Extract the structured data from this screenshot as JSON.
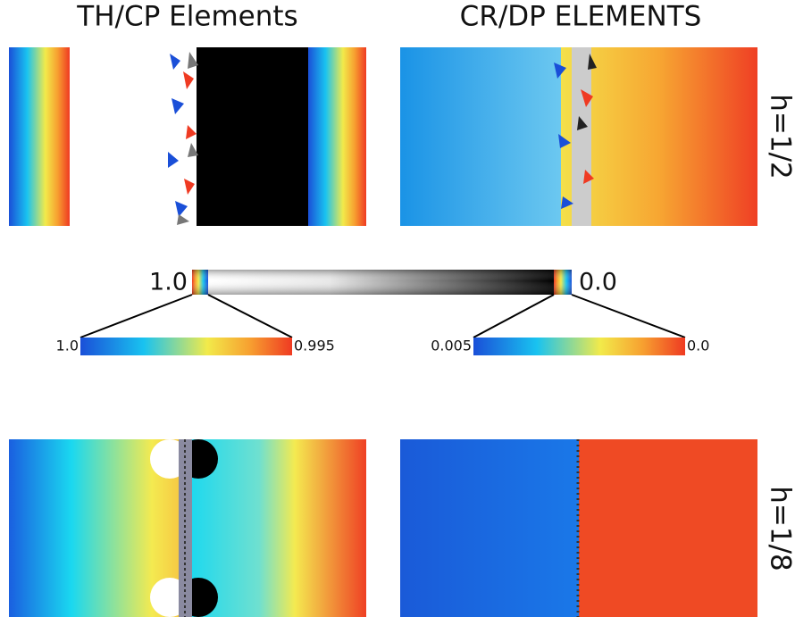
{
  "columns": [
    "TH/CP Elements",
    "CR/DP ELEMENTS"
  ],
  "rows": [
    "h=1/2",
    "h=1/8"
  ],
  "colorbar": {
    "left_label": "1.0",
    "right_label": "0.0"
  },
  "zoom_left": {
    "left_label": "1.0",
    "right_label": "0.995"
  },
  "zoom_right": {
    "left_label": "0.005",
    "right_label": "0.0"
  }
}
